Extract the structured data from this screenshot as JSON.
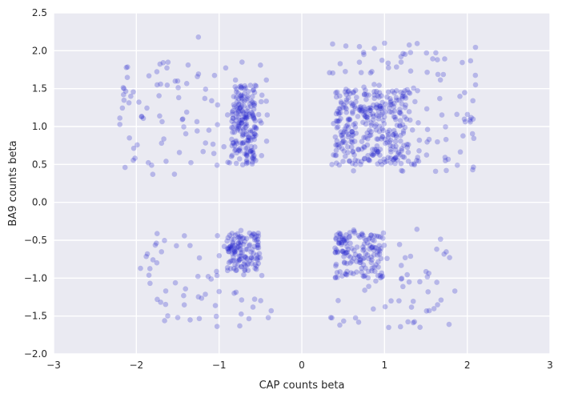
{
  "chart_data": {
    "type": "scatter",
    "title": "",
    "xlabel": "CAP counts beta",
    "ylabel": "BA9 counts beta",
    "xlim": [
      -3,
      3
    ],
    "ylim": [
      -2.0,
      2.5
    ],
    "xticks": [
      -3,
      -2,
      -1,
      0,
      1,
      2,
      3
    ],
    "xtick_labels": [
      "−3",
      "−2",
      "−1",
      "0",
      "1",
      "2",
      "3"
    ],
    "yticks": [
      -2.0,
      -1.5,
      -1.0,
      -0.5,
      0.0,
      0.5,
      1.0,
      1.5,
      2.0,
      2.5
    ],
    "ytick_labels": [
      "−2.0",
      "−1.5",
      "−1.0",
      "−0.5",
      "0.0",
      "0.5",
      "1.0",
      "1.5",
      "2.0",
      "2.5"
    ],
    "grid": true,
    "style": "seaborn darkgrid",
    "colors": {
      "background": "#eaeaf2",
      "grid": "#ffffff",
      "marker": "#1a1acc",
      "marker_opacity": 0.25
    },
    "clusters": [
      {
        "name_hint": "upper-left",
        "x_range": [
          -2.2,
          -0.4
        ],
        "y_range": [
          0.35,
          1.85
        ],
        "dense_x": [
          -0.85,
          -0.55
        ],
        "dense_y": [
          0.5,
          1.55
        ],
        "count": 280
      },
      {
        "name_hint": "upper-right",
        "x_range": [
          0.3,
          2.1
        ],
        "y_range": [
          0.4,
          2.1
        ],
        "dense_x": [
          0.4,
          1.3
        ],
        "dense_y": [
          0.5,
          1.5
        ],
        "count": 420
      },
      {
        "name_hint": "lower-left",
        "x_range": [
          -1.9,
          -0.4
        ],
        "y_range": [
          -1.65,
          -0.35
        ],
        "dense_x": [
          -0.9,
          -0.5
        ],
        "dense_y": [
          -0.9,
          -0.4
        ],
        "count": 180
      },
      {
        "name_hint": "lower-right",
        "x_range": [
          0.35,
          1.8
        ],
        "y_range": [
          -1.65,
          -0.35
        ],
        "dense_x": [
          0.4,
          1.0
        ],
        "dense_y": [
          -1.0,
          -0.4
        ],
        "count": 200
      }
    ],
    "highlight_points": [
      {
        "x": -1.25,
        "y": 2.18
      },
      {
        "x": 1.0,
        "y": 2.1
      },
      {
        "x": 2.1,
        "y": 1.55
      },
      {
        "x": -2.15,
        "y": 1.5
      },
      {
        "x": -0.5,
        "y": 1.81
      },
      {
        "x": 1.88,
        "y": 0.49
      },
      {
        "x": 0.75,
        "y": 1.95
      },
      {
        "x": 1.2,
        "y": 1.85
      },
      {
        "x": -0.75,
        "y": -1.63
      },
      {
        "x": 1.05,
        "y": -1.65
      },
      {
        "x": 1.78,
        "y": -1.61
      },
      {
        "x": 0.35,
        "y": -1.52
      },
      {
        "x": -1.5,
        "y": -1.52
      },
      {
        "x": -1.35,
        "y": -1.55
      },
      {
        "x": -1.95,
        "y": -0.87
      },
      {
        "x": 1.85,
        "y": -1.17
      },
      {
        "x": -0.37,
        "y": -1.43
      }
    ]
  }
}
